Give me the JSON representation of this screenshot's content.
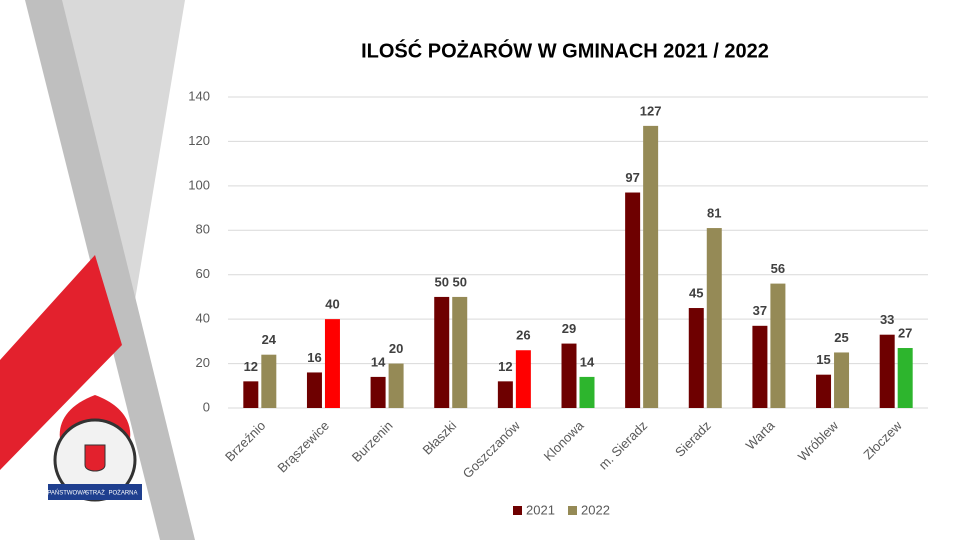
{
  "chart_data": {
    "type": "bar",
    "title": "ILOŚĆ POŻARÓW W GMINACH 2021 / 2022",
    "categories": [
      "Brzeźnio",
      "Brąszewice",
      "Burzenin",
      "Błaszki",
      "Goszczanów",
      "Klonowa",
      "m. Sieradz",
      "Sieradz",
      "Warta",
      "Wróblew",
      "Złoczew"
    ],
    "series": [
      {
        "name": "2021",
        "color": "#6e0000",
        "values": [
          12,
          16,
          14,
          50,
          12,
          29,
          97,
          45,
          37,
          15,
          33
        ]
      },
      {
        "name": "2022",
        "color": "#958a56",
        "values": [
          24,
          40,
          20,
          50,
          26,
          14,
          127,
          81,
          56,
          25,
          27
        ],
        "colors": [
          "#958a56",
          "#ff0000",
          "#958a56",
          "#958a56",
          "#ff0000",
          "#2db52d",
          "#958a56",
          "#958a56",
          "#958a56",
          "#958a56",
          "#2db52d"
        ]
      }
    ],
    "ylim": [
      0,
      140
    ],
    "yticks": [
      0,
      20,
      40,
      60,
      80,
      100,
      120,
      140
    ],
    "grid": true,
    "legend": "bottom"
  },
  "logo": {
    "text": [
      "PAŃSTWOWA",
      "STRAŻ",
      "POŻARNA"
    ]
  }
}
